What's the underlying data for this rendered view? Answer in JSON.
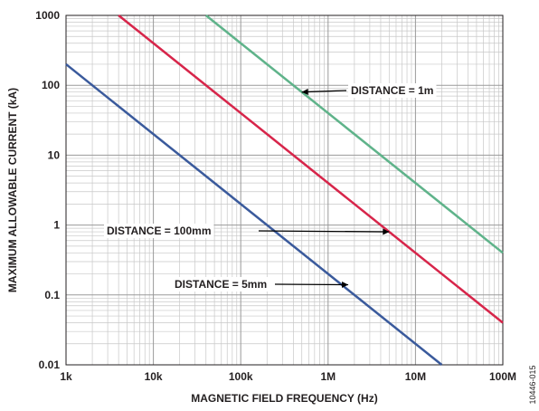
{
  "chart_data": {
    "type": "line",
    "xlabel": "MAGNETIC FIELD FREQUENCY (Hz)",
    "ylabel": "MAXIMUM ALLOWABLE CURRENT (kA)",
    "x_scale": "log",
    "y_scale": "log",
    "xlim": [
      1000,
      100000000
    ],
    "ylim": [
      0.01,
      1000
    ],
    "x_ticks": [
      {
        "value": 1000,
        "label": "1k"
      },
      {
        "value": 10000,
        "label": "10k"
      },
      {
        "value": 100000,
        "label": "100k"
      },
      {
        "value": 1000000,
        "label": "1M"
      },
      {
        "value": 10000000,
        "label": "10M"
      },
      {
        "value": 100000000,
        "label": "100M"
      }
    ],
    "y_ticks": [
      {
        "value": 0.01,
        "label": "0.01"
      },
      {
        "value": 0.1,
        "label": "0.1"
      },
      {
        "value": 1,
        "label": "1"
      },
      {
        "value": 10,
        "label": "10"
      },
      {
        "value": 100,
        "label": "100"
      },
      {
        "value": 1000,
        "label": "1000"
      }
    ],
    "grid": true,
    "series": [
      {
        "color": "#3a5a9c",
        "x": [
          1000,
          20000000
        ],
        "y": [
          200,
          0.01
        ]
      },
      {
        "color": "#d7254a",
        "x": [
          4000,
          100000000
        ],
        "y": [
          1000,
          0.04
        ]
      },
      {
        "color": "#5fb38a",
        "x": [
          40000,
          100000000
        ],
        "y": [
          1000,
          0.4
        ]
      }
    ],
    "annotations": [
      {
        "text": "DISTANCE = 1m",
        "arrow_to": [
          500000,
          80
        ]
      },
      {
        "text": "DISTANCE = 100mm",
        "arrow_to": [
          5000000,
          0.8
        ]
      },
      {
        "text": "DISTANCE = 5mm",
        "arrow_to": [
          1700000,
          0.14
        ]
      }
    ]
  },
  "figure_id": "10446-015"
}
